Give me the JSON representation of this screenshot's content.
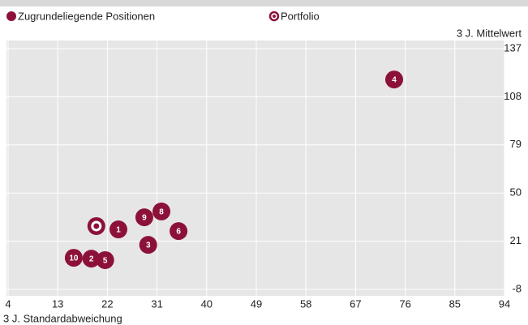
{
  "chart_data": {
    "type": "scatter",
    "x_label": "3 J. Standardabweichung",
    "y_label": "3 J. Mittelwert",
    "series": [
      {
        "name": "Zugrundeliegende Positionen",
        "color": "#8c1139",
        "labels": [
          "4",
          "1",
          "9",
          "8",
          "6",
          "3",
          "10",
          "2",
          "5"
        ],
        "x": [
          74.0,
          24.0,
          28.7,
          31.8,
          34.9,
          29.4,
          15.9,
          19.1,
          21.6
        ],
        "values": [
          118.4,
          28.1,
          35.4,
          38.9,
          27.1,
          18.8,
          11.0,
          10.5,
          9.6
        ]
      },
      {
        "name": "Portfolio",
        "color": "#8c1139",
        "x": [
          20.0
        ],
        "values": [
          30.1
        ]
      }
    ],
    "xlim": [
      4,
      94
    ],
    "xticks": [
      4,
      13,
      22,
      31,
      40,
      49,
      58,
      67,
      76,
      85,
      94
    ],
    "ylim": [
      -8,
      137
    ],
    "yticks": [
      -8,
      21,
      50,
      79,
      108,
      137
    ],
    "grid": true
  }
}
